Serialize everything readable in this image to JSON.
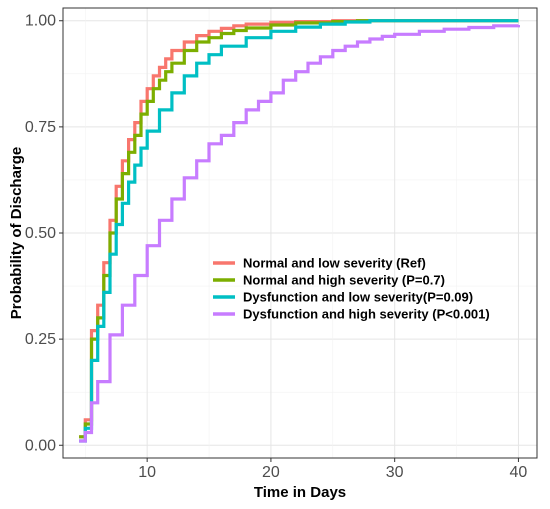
{
  "chart_data": {
    "type": "line",
    "title": "",
    "xlabel": "Time in Days",
    "ylabel": "Probability of Discharge",
    "xlim": [
      3.2,
      41.5
    ],
    "ylim": [
      -0.03,
      1.03
    ],
    "xticks": [
      10,
      20,
      30,
      40
    ],
    "xtick_labels": [
      "10",
      "20",
      "30",
      "40"
    ],
    "yticks": [
      0,
      0.25,
      0.5,
      0.75,
      1
    ],
    "ytick_labels": [
      "0.00",
      "0.25",
      "0.50",
      "0.75",
      "1.00"
    ],
    "grid": true,
    "legend_position": "center-right",
    "step": true,
    "series": [
      {
        "name": "Normal and low severity (Ref)",
        "color": "#F8766D",
        "x": [
          4.5,
          5,
          5.5,
          6,
          6.5,
          7,
          7.5,
          8,
          8.5,
          9,
          9.5,
          10,
          10.5,
          11,
          11.5,
          12,
          13,
          14,
          15,
          16,
          17,
          18,
          20,
          22,
          25,
          28,
          40
        ],
        "y": [
          0.02,
          0.06,
          0.27,
          0.33,
          0.43,
          0.53,
          0.61,
          0.67,
          0.72,
          0.76,
          0.81,
          0.84,
          0.87,
          0.89,
          0.91,
          0.93,
          0.95,
          0.965,
          0.975,
          0.982,
          0.988,
          0.992,
          0.996,
          0.998,
          1,
          1,
          1
        ]
      },
      {
        "name": "Normal and high severity (P=0.7)",
        "color": "#7CAE00",
        "x": [
          4.5,
          5,
          5.5,
          6,
          6.5,
          7,
          7.5,
          8,
          8.5,
          9,
          9.5,
          10,
          10.5,
          11,
          11.5,
          12,
          13,
          14,
          15,
          16,
          17,
          18,
          20,
          22,
          25,
          27,
          40
        ],
        "y": [
          0.02,
          0.05,
          0.25,
          0.3,
          0.4,
          0.5,
          0.58,
          0.64,
          0.69,
          0.73,
          0.78,
          0.81,
          0.84,
          0.86,
          0.88,
          0.9,
          0.93,
          0.95,
          0.96,
          0.97,
          0.977,
          0.983,
          0.99,
          0.995,
          0.998,
          1,
          1
        ]
      },
      {
        "name": "Dysfunction and low severity(P=0.09)",
        "color": "#00BFC4",
        "x": [
          4.5,
          5,
          5.5,
          6,
          6.5,
          7,
          7.5,
          8,
          8.5,
          9,
          9.5,
          10,
          11,
          12,
          13,
          14,
          15,
          16,
          18,
          20,
          22,
          24,
          26,
          28,
          30,
          40
        ],
        "y": [
          0.01,
          0.04,
          0.2,
          0.28,
          0.36,
          0.45,
          0.52,
          0.57,
          0.62,
          0.66,
          0.7,
          0.74,
          0.79,
          0.83,
          0.87,
          0.9,
          0.92,
          0.94,
          0.96,
          0.975,
          0.985,
          0.992,
          0.997,
          1,
          1,
          1
        ]
      },
      {
        "name": "Dysfunction and high severity (P<0.001)",
        "color": "#C77CFF",
        "x": [
          4.5,
          5,
          5.5,
          6,
          7,
          8,
          9,
          10,
          11,
          12,
          13,
          14,
          15,
          16,
          17,
          18,
          19,
          20,
          21,
          22,
          23,
          24,
          25,
          26,
          27,
          28,
          29,
          30,
          32,
          34,
          36,
          38,
          40
        ],
        "y": [
          0.01,
          0.03,
          0.1,
          0.15,
          0.26,
          0.33,
          0.4,
          0.47,
          0.53,
          0.58,
          0.63,
          0.67,
          0.71,
          0.73,
          0.76,
          0.79,
          0.81,
          0.83,
          0.86,
          0.88,
          0.9,
          0.915,
          0.93,
          0.94,
          0.95,
          0.957,
          0.963,
          0.968,
          0.975,
          0.98,
          0.984,
          0.988,
          0.99
        ]
      }
    ]
  }
}
